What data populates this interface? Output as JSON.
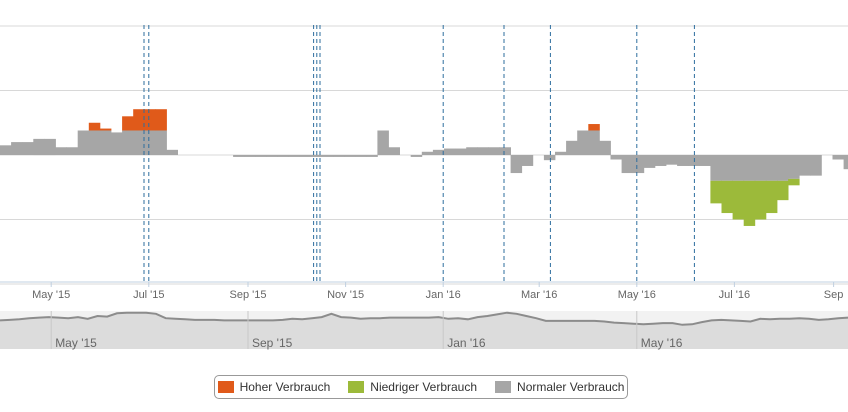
{
  "chart_data": {
    "type": "bar",
    "x_unit": "week",
    "x_start": "2015-03-30",
    "x_range": [
      "2015-03-30",
      "2016-09-10"
    ],
    "y_range": [
      -2,
      2
    ],
    "y_gridlines": [
      -2,
      -1,
      0,
      1,
      2
    ],
    "x_tick_labels": [
      "May '15",
      "Jul '15",
      "Sep '15",
      "Nov '15",
      "Jan '16",
      "Mar '16",
      "May '16",
      "Jul '16",
      "Sep"
    ],
    "x_tick_dates": [
      "2015-05-01",
      "2015-07-01",
      "2015-09-01",
      "2015-11-01",
      "2016-01-01",
      "2016-03-01",
      "2016-05-01",
      "2016-07-01",
      "2016-09-01"
    ],
    "series": [
      {
        "name": "Normaler Verbrauch",
        "color": "#a6a6a6",
        "values": [
          0.15,
          0.2,
          0.2,
          0.25,
          0.25,
          0.12,
          0.12,
          0.38,
          0.38,
          0.38,
          0.35,
          0.38,
          0.38,
          0.38,
          0.38,
          0.08,
          0,
          0,
          0,
          0,
          0,
          -0.03,
          -0.03,
          -0.03,
          -0.03,
          -0.03,
          -0.03,
          -0.03,
          -0.03,
          -0.03,
          -0.03,
          -0.03,
          -0.03,
          -0.03,
          0.38,
          0.12,
          0,
          -0.03,
          0.05,
          0.08,
          0.1,
          0.1,
          0.12,
          0.12,
          0.12,
          0.12,
          -0.28,
          -0.17,
          0,
          -0.08,
          0.05,
          0.22,
          0.38,
          0.38,
          0.22,
          -0.07,
          -0.28,
          -0.28,
          -0.2,
          -0.17,
          -0.15,
          -0.17,
          -0.17,
          -0.17,
          -0.4,
          -0.4,
          -0.4,
          -0.4,
          -0.4,
          -0.4,
          -0.4,
          -0.37,
          -0.32,
          -0.32,
          0,
          -0.07,
          -0.22,
          0,
          -0.03,
          -0.03,
          -0.07,
          0,
          0,
          -0.07,
          -0.28,
          -0.28,
          -0.03,
          0
        ]
      },
      {
        "name": "Hoher Verbrauch",
        "color": "#e05a1a",
        "values": [
          0,
          0,
          0,
          0,
          0,
          0,
          0,
          0,
          0.12,
          0.03,
          0,
          0.22,
          0.33,
          0.33,
          0.33,
          0,
          0,
          0,
          0,
          0,
          0,
          0,
          0,
          0,
          0,
          0,
          0,
          0,
          0,
          0,
          0,
          0,
          0,
          0,
          0,
          0,
          0,
          0,
          0,
          0,
          0,
          0,
          0,
          0,
          0,
          0,
          0,
          0,
          0,
          0,
          0,
          0,
          0,
          0.1,
          0,
          0,
          0,
          0,
          0,
          0,
          0,
          0,
          0,
          0,
          0,
          0,
          0,
          0,
          0,
          0,
          0,
          0,
          0,
          0,
          0,
          0,
          0,
          0,
          0,
          0,
          0,
          0,
          0,
          0,
          0,
          0,
          0,
          0
        ]
      },
      {
        "name": "Niedriger Verbrauch",
        "color": "#9cba3a",
        "values": [
          0,
          0,
          0,
          0,
          0,
          0,
          0,
          0,
          0,
          0,
          0,
          0,
          0,
          0,
          0,
          0,
          0,
          0,
          0,
          0,
          0,
          0,
          0,
          0,
          0,
          0,
          0,
          0,
          0,
          0,
          0,
          0,
          0,
          0,
          0,
          0,
          0,
          0,
          0,
          0,
          0,
          0,
          0,
          0,
          0,
          0,
          0,
          0,
          0,
          0,
          0,
          0,
          0,
          0,
          0,
          0,
          0,
          0,
          0,
          0,
          0,
          0,
          0,
          0,
          -0.35,
          -0.5,
          -0.6,
          -0.7,
          -0.6,
          -0.5,
          -0.3,
          -0.1,
          0,
          0,
          0,
          0,
          0,
          0,
          0,
          0,
          0,
          0,
          0,
          0,
          0,
          0,
          0,
          0
        ]
      }
    ],
    "markers": [
      "2015-06-28",
      "2015-07-01",
      "2015-10-12",
      "2015-10-14",
      "2015-10-16",
      "2016-01-01",
      "2016-02-08",
      "2016-03-08",
      "2016-05-01",
      "2016-06-06"
    ],
    "navigator": {
      "labels": [
        "May '15",
        "Sep '15",
        "Jan '16",
        "May '16"
      ],
      "label_dates": [
        "2015-05-01",
        "2015-09-01",
        "2016-01-01",
        "2016-05-01"
      ],
      "profile": [
        28,
        27,
        26,
        24,
        23,
        22,
        23,
        24,
        22,
        25,
        20,
        21,
        15,
        14,
        14,
        14,
        16,
        24,
        25,
        26,
        27,
        27,
        27,
        28,
        28,
        28,
        28,
        28,
        28,
        27,
        25,
        26,
        24,
        22,
        16,
        22,
        23,
        25,
        24,
        24,
        23,
        23,
        23,
        23,
        23,
        22,
        25,
        24,
        26,
        22,
        20,
        17,
        14,
        16,
        20,
        24,
        29,
        29,
        29,
        29,
        29,
        29,
        30,
        32,
        33,
        34,
        35,
        34,
        33,
        33,
        36,
        35,
        31,
        28,
        27,
        28,
        29,
        30,
        25,
        26,
        25,
        25,
        24,
        25,
        27,
        26,
        24,
        23
      ]
    }
  },
  "legend": {
    "items": [
      {
        "label": "Hoher Verbrauch",
        "color": "#e05a1a"
      },
      {
        "label": "Niedriger Verbrauch",
        "color": "#9cba3a"
      },
      {
        "label": "Normaler Verbrauch",
        "color": "#a6a6a6"
      }
    ]
  }
}
